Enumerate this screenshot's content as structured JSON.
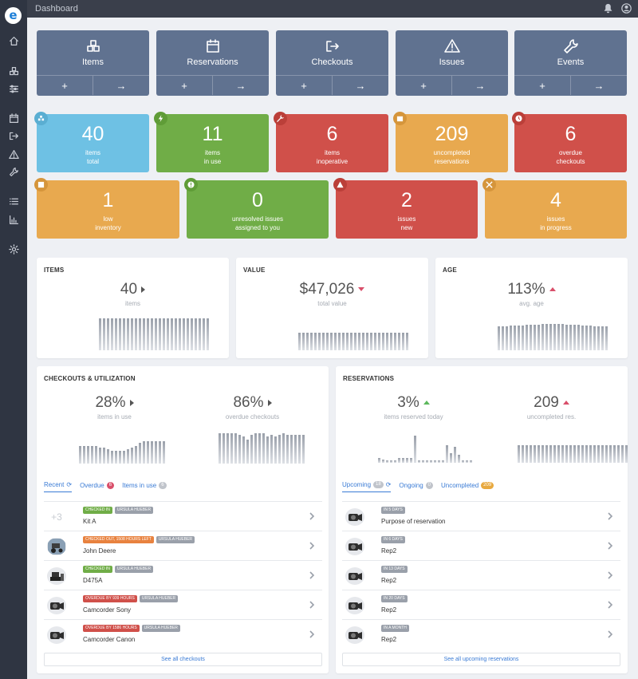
{
  "app": {
    "logo": "e",
    "title": "Dashboard"
  },
  "sidebar": {
    "items": [
      "home-icon",
      "boxes-icon",
      "sliders-icon",
      "calendar-icon",
      "checkout-icon",
      "warning-icon",
      "wrench-icon",
      "list-icon",
      "chart-icon",
      "gear-icon"
    ]
  },
  "nav_tiles": [
    {
      "title": "Items",
      "icon": "cubes-icon",
      "add": "+",
      "go": "→"
    },
    {
      "title": "Reservations",
      "icon": "calendar-icon",
      "add": "+",
      "go": "→"
    },
    {
      "title": "Checkouts",
      "icon": "sign-out-icon",
      "add": "+",
      "go": "→"
    },
    {
      "title": "Issues",
      "icon": "warning-icon",
      "add": "+",
      "go": "→"
    },
    {
      "title": "Events",
      "icon": "wrench-icon",
      "add": "+",
      "go": "→"
    }
  ],
  "stats": [
    {
      "value": "40",
      "label": "items\ntotal",
      "color": "#6ec1e4",
      "badge": "#5aaed2"
    },
    {
      "value": "11",
      "label": "items\nin use",
      "color": "#70ad47",
      "badge": "#5f9c37"
    },
    {
      "value": "6",
      "label": "items\ninoperative",
      "color": "#d0504a",
      "badge": "#bb3f39"
    },
    {
      "value": "209",
      "label": "uncompleted\nreservations",
      "color": "#e8a94f",
      "badge": "#d5953b"
    },
    {
      "value": "6",
      "label": "overdue\ncheckouts",
      "color": "#d0504a",
      "badge": "#bb3f39"
    },
    {
      "value": "1",
      "label": "low\ninventory",
      "color": "#e8a94f",
      "badge": "#d5953b"
    },
    {
      "value": "0",
      "label": "unresolved issues\nassigned to you",
      "color": "#70ad47",
      "badge": "#5f9c37"
    },
    {
      "value": "2",
      "label": "issues\nnew",
      "color": "#d0504a",
      "badge": "#bb3f39"
    },
    {
      "value": "4",
      "label": "issues\nin progress",
      "color": "#e8a94f",
      "badge": "#d5953b"
    }
  ],
  "cards": {
    "items": {
      "title": "ITEMS",
      "value": "40",
      "label": "items",
      "bars": [
        40,
        40,
        40,
        40,
        40,
        40,
        40,
        40,
        40,
        40,
        40,
        40,
        40,
        40,
        40,
        40,
        40,
        40,
        40,
        40,
        40,
        40,
        40,
        40,
        40,
        40,
        40,
        40
      ]
    },
    "value": {
      "title": "VALUE",
      "value": "$47,026",
      "label": "total value",
      "bars": [
        22,
        22,
        22,
        22,
        22,
        22,
        22,
        22,
        22,
        22,
        22,
        22,
        22,
        22,
        22,
        22,
        22,
        22,
        22,
        22,
        22,
        22,
        22,
        22,
        22,
        22,
        22,
        22
      ]
    },
    "age": {
      "title": "AGE",
      "value": "113%",
      "label": "avg. age",
      "bars": [
        30,
        30,
        30,
        31,
        31,
        31,
        31,
        32,
        32,
        32,
        32,
        33,
        33,
        33,
        33,
        33,
        33,
        32,
        32,
        32,
        32,
        31,
        31,
        31,
        30,
        30,
        30,
        30
      ]
    },
    "checkouts": {
      "title": "CHECKOUTS & UTILIZATION",
      "in_use": {
        "value": "28%",
        "label": "items in use",
        "bars": [
          22,
          22,
          22,
          22,
          22,
          20,
          20,
          18,
          16,
          16,
          16,
          16,
          18,
          20,
          22,
          26,
          28,
          28,
          28,
          28,
          28,
          28
        ]
      },
      "overdue": {
        "value": "86%",
        "label": "overdue checkouts",
        "bars": [
          38,
          38,
          38,
          38,
          38,
          36,
          34,
          30,
          36,
          38,
          38,
          38,
          34,
          36,
          34,
          36,
          38,
          36,
          36,
          36,
          36,
          36
        ]
      }
    },
    "reservations": {
      "title": "RESERVATIONS",
      "today": {
        "value": "3%",
        "label": "items reserved today",
        "bars": [
          6,
          4,
          3,
          3,
          3,
          6,
          6,
          6,
          6,
          34,
          3,
          3,
          3,
          3,
          3,
          3,
          3,
          22,
          12,
          20,
          10,
          3,
          3,
          3
        ]
      },
      "uncompleted": {
        "value": "209",
        "label": "uncompleted res.",
        "bars": [
          22,
          22,
          22,
          22,
          22,
          22,
          22,
          22,
          22,
          22,
          22,
          22,
          22,
          22,
          22,
          22,
          22,
          22,
          22,
          22,
          22,
          22,
          22,
          22,
          22,
          22,
          22,
          22
        ]
      }
    }
  },
  "checkouts_tabs": [
    {
      "label": "Recent",
      "count": ""
    },
    {
      "label": "Overdue",
      "count": "6"
    },
    {
      "label": "Items in use",
      "count": "6"
    }
  ],
  "checkouts_list": [
    {
      "name": "Kit A",
      "thumb": "+3",
      "tags": [
        {
          "text": "CHECKED IN",
          "color": "#70ad47"
        },
        {
          "text": "URSULA HUEBER",
          "color": "#9aa0aa"
        }
      ]
    },
    {
      "name": "John Deere",
      "thumb": "tractor",
      "tags": [
        {
          "text": "CHECKED OUT, 1508 HOURS LEFT",
          "color": "#e8823f"
        },
        {
          "text": "URSULA HUEBER",
          "color": "#9aa0aa"
        }
      ]
    },
    {
      "name": "D475A",
      "thumb": "dozer",
      "tags": [
        {
          "text": "CHECKED IN",
          "color": "#70ad47"
        },
        {
          "text": "URSULA HUEBER",
          "color": "#9aa0aa"
        }
      ]
    },
    {
      "name": "Camcorder Sony",
      "thumb": "camera",
      "tags": [
        {
          "text": "OVERDUE BY 939 HOURS",
          "color": "#d0504a"
        },
        {
          "text": "URSULA HUEBER",
          "color": "#9aa0aa"
        }
      ]
    },
    {
      "name": "Camcorder Canon",
      "thumb": "camera",
      "tags": [
        {
          "text": "OVERDUE BY 1586 HOURS",
          "color": "#d0504a"
        },
        {
          "text": "URSULA HUEBER",
          "color": "#9aa0aa"
        }
      ]
    }
  ],
  "checkouts_seeall": "See all checkouts",
  "reservations_tabs": [
    {
      "label": "Upcoming",
      "count": "18"
    },
    {
      "label": "Ongoing",
      "count": "0"
    },
    {
      "label": "Uncompleted",
      "count": "209"
    }
  ],
  "reservations_list": [
    {
      "name": "Purpose of reservation",
      "tag": "IN 5 DAYS"
    },
    {
      "name": "Rep2",
      "tag": "IN 6 DAYS"
    },
    {
      "name": "Rep2",
      "tag": "IN 13 DAYS"
    },
    {
      "name": "Rep2",
      "tag": "IN 20 DAYS"
    },
    {
      "name": "Rep2",
      "tag": "IN A MONTH"
    }
  ],
  "reservations_seeall": "See all upcoming reservations"
}
